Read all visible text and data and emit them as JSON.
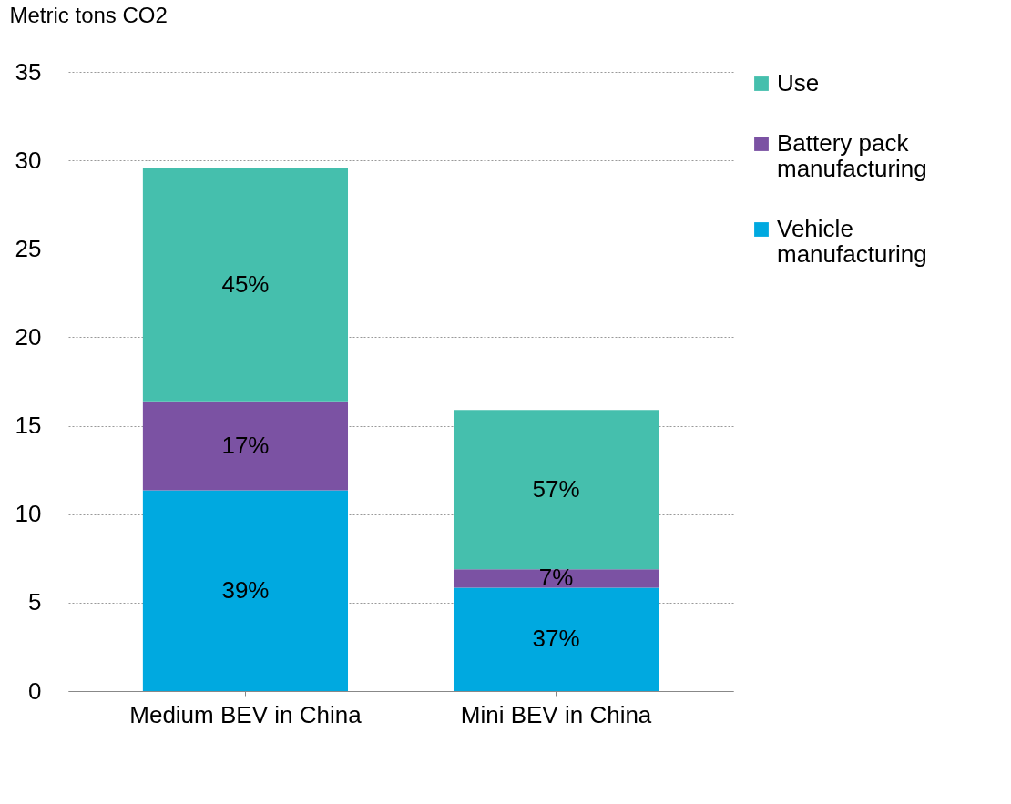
{
  "chart_data": {
    "type": "bar",
    "stacked": true,
    "ylabel": "Metric tons CO2",
    "categories": [
      "Medium BEV in China",
      "Mini BEV in China"
    ],
    "series": [
      {
        "name": "Vehicle manufacturing",
        "color": "#00a9e0",
        "values": [
          11.35,
          5.84
        ]
      },
      {
        "name": "Battery pack manufacturing",
        "color": "#7b52a3",
        "values": [
          5.03,
          1.05
        ]
      },
      {
        "name": "Use",
        "color": "#45bfad",
        "values": [
          13.2,
          9.0
        ]
      }
    ],
    "annotations": [
      "39%",
      "17%",
      "45%",
      "37%",
      "7%",
      "57%"
    ],
    "ylim": [
      0,
      35
    ],
    "yticks": [
      0,
      5,
      10,
      15,
      20,
      25,
      30,
      35
    ],
    "grid": "y",
    "legend": "right"
  }
}
